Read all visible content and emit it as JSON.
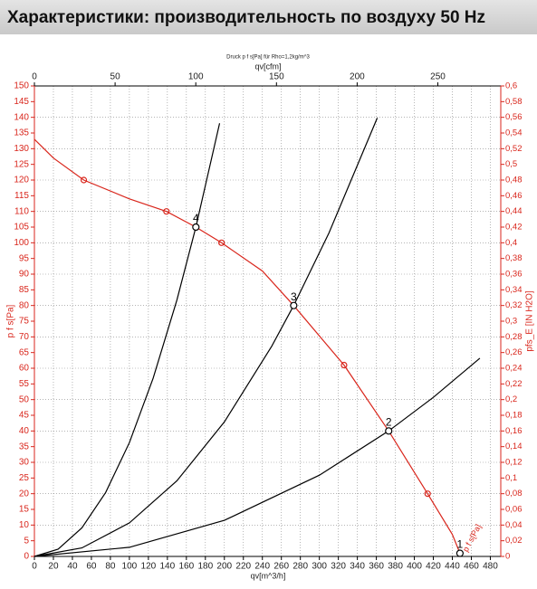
{
  "chart_data": {
    "type": "line",
    "title": "Характеристики: производительность по воздуху 50 Hz",
    "subtitle": "Druck p f s[Pa] für Rho=1,2kg/m^3",
    "x_label": "qv[m^3/h]",
    "x2_label": "qv[cfm]",
    "y_label": "p f s[Pa]",
    "y2_label": "pfs_E [IN H2O]",
    "xlim": [
      0,
      491
    ],
    "xticks": [
      0,
      20,
      40,
      60,
      80,
      100,
      120,
      140,
      160,
      180,
      200,
      220,
      240,
      260,
      280,
      300,
      320,
      340,
      360,
      380,
      400,
      420,
      440,
      460,
      480
    ],
    "x2lim": [
      0,
      289
    ],
    "x2ticks": [
      0,
      50,
      100,
      150,
      200,
      250
    ],
    "ylim": [
      0,
      150
    ],
    "yticks": [
      0,
      5,
      10,
      15,
      20,
      25,
      30,
      35,
      40,
      45,
      50,
      55,
      60,
      65,
      70,
      75,
      80,
      85,
      90,
      95,
      100,
      105,
      110,
      115,
      120,
      125,
      130,
      135,
      140,
      145,
      150
    ],
    "y2lim": [
      0,
      0.6
    ],
    "y2ticks": [
      0,
      {
        "value": 0.02,
        "label": "0,02"
      },
      {
        "value": 0.04,
        "label": "0,04"
      },
      {
        "value": 0.06,
        "label": "0,06"
      },
      {
        "value": 0.08,
        "label": "0,08"
      },
      {
        "value": 0.1,
        "label": "0,1"
      },
      {
        "value": 0.12,
        "label": "0,12"
      },
      {
        "value": 0.14,
        "label": "0,14"
      },
      {
        "value": 0.16,
        "label": "0,16"
      },
      {
        "value": 0.18,
        "label": "0,18"
      },
      {
        "value": 0.2,
        "label": "0,2"
      },
      {
        "value": 0.22,
        "label": "0,22"
      },
      {
        "value": 0.24,
        "label": "0,24"
      },
      {
        "value": 0.26,
        "label": "0,26"
      },
      {
        "value": 0.28,
        "label": "0,28"
      },
      {
        "value": 0.3,
        "label": "0,3"
      },
      {
        "value": 0.32,
        "label": "0,32"
      },
      {
        "value": 0.34,
        "label": "0,34"
      },
      {
        "value": 0.36,
        "label": "0,36"
      },
      {
        "value": 0.38,
        "label": "0,38"
      },
      {
        "value": 0.4,
        "label": "0,4"
      },
      {
        "value": 0.42,
        "label": "0,42"
      },
      {
        "value": 0.44,
        "label": "0,44"
      },
      {
        "value": 0.46,
        "label": "0,46"
      },
      {
        "value": 0.48,
        "label": "0,48"
      },
      {
        "value": 0.5,
        "label": "0,5"
      },
      {
        "value": 0.52,
        "label": "0,52"
      },
      {
        "value": 0.54,
        "label": "0,54"
      },
      {
        "value": 0.56,
        "label": "0,56"
      },
      {
        "value": 0.58,
        "label": "0,58"
      },
      {
        "value": 0.6,
        "label": "0,6"
      }
    ],
    "grid": true,
    "series": [
      {
        "name": "p f s[Pa]",
        "color": "#d9261c",
        "x": [
          0,
          20,
          52,
          100,
          139,
          170,
          197,
          240,
          273,
          326,
          373,
          414,
          440,
          448
        ],
        "values": [
          133,
          127,
          120,
          114,
          110,
          105,
          100,
          91,
          80,
          61,
          40,
          20,
          7,
          1
        ],
        "marker_indices": [
          2,
          4,
          6,
          9,
          11
        ]
      },
      {
        "color": "#000000",
        "x": [
          0,
          25,
          50,
          75,
          100,
          125,
          150,
          170,
          195
        ],
        "values": [
          0,
          2.3,
          9.1,
          20.4,
          36.3,
          56.8,
          81.7,
          105,
          138.1
        ]
      },
      {
        "color": "#000000",
        "x": [
          0,
          50,
          100,
          150,
          200,
          250,
          273,
          310,
          361
        ],
        "values": [
          0,
          2.7,
          10.7,
          24.1,
          42.9,
          67.1,
          80,
          103.1,
          139.8
        ]
      },
      {
        "color": "#000000",
        "x": [
          0,
          100,
          200,
          300,
          373,
          420,
          469
        ],
        "values": [
          0,
          2.9,
          11.5,
          25.9,
          40,
          50.7,
          63.2
        ]
      }
    ],
    "points": [
      {
        "label": "1",
        "x": 448,
        "y": 1
      },
      {
        "label": "2",
        "x": 373,
        "y": 40
      },
      {
        "label": "3",
        "x": 273,
        "y": 80
      },
      {
        "label": "4",
        "x": 170,
        "y": 105
      }
    ]
  }
}
